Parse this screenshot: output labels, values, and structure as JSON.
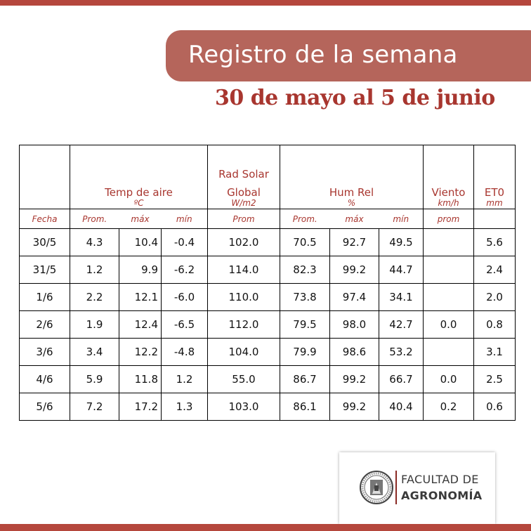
{
  "header": {
    "title": "Registro de la semana",
    "subtitle": "30 de mayo al 5 de junio"
  },
  "colors": {
    "accent": "#b5473d",
    "pill": "#b5655b",
    "header_text": "#a8362f"
  },
  "table": {
    "groups": {
      "temp": {
        "label": "Temp de aire",
        "unit": "ºC"
      },
      "rad": {
        "label_line1": "Rad Solar",
        "label_line2": "Global",
        "unit": "W/m2"
      },
      "hum": {
        "label": "Hum Rel",
        "unit": "%"
      },
      "viento": {
        "label": "Viento",
        "unit": "km/h"
      },
      "et0": {
        "label": "ET0",
        "unit": "mm"
      }
    },
    "subheaders": [
      "Fecha",
      "Prom.",
      "máx",
      "mín",
      "Prom",
      "Prom.",
      "máx",
      "mín",
      "prom",
      ""
    ],
    "rows": [
      [
        "30/5",
        "4.3",
        "10.4",
        "-0.4",
        "102.0",
        "70.5",
        "92.7",
        "49.5",
        "",
        "5.6"
      ],
      [
        "31/5",
        "1.2",
        "9.9",
        "-6.2",
        "114.0",
        "82.3",
        "99.2",
        "44.7",
        "",
        "2.4"
      ],
      [
        "1/6",
        "2.2",
        "12.1",
        "-6.0",
        "110.0",
        "73.8",
        "97.4",
        "34.1",
        "",
        "2.0"
      ],
      [
        "2/6",
        "1.9",
        "12.4",
        "-6.5",
        "112.0",
        "79.5",
        "98.0",
        "42.7",
        "0.0",
        "0.8"
      ],
      [
        "3/6",
        "3.4",
        "12.2",
        "-4.8",
        "104.0",
        "79.9",
        "98.6",
        "53.2",
        "",
        "3.1"
      ],
      [
        "4/6",
        "5.9",
        "11.8",
        "1.2",
        "55.0",
        "86.7",
        "99.2",
        "66.7",
        "0.0",
        "2.5"
      ],
      [
        "5/6",
        "7.2",
        "17.2",
        "1.3",
        "103.0",
        "86.1",
        "99.2",
        "40.4",
        "0.2",
        "0.6"
      ]
    ]
  },
  "logo": {
    "line1": "FACULTAD DE",
    "line2": "AGRONOMÍA",
    "icon": "university-seal-icon"
  }
}
